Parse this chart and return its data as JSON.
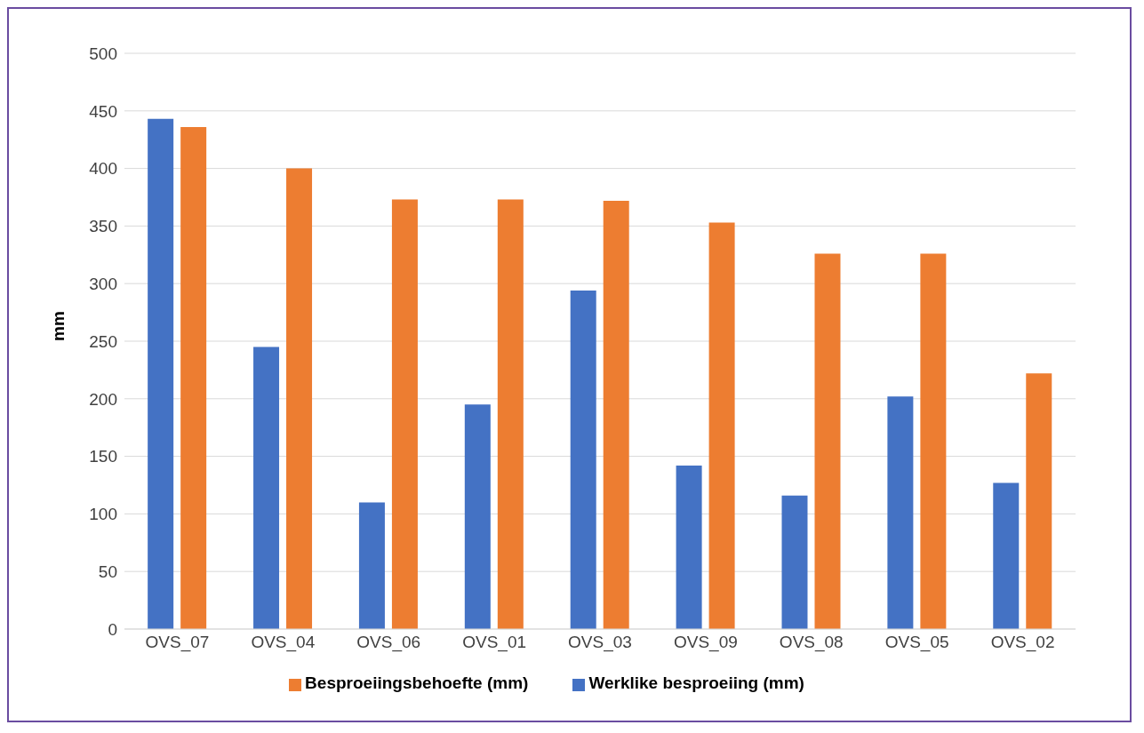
{
  "chart_data": {
    "type": "bar",
    "ylabel": "mm",
    "categories": [
      "OVS_07",
      "OVS_04",
      "OVS_06",
      "OVS_01",
      "OVS_03",
      "OVS_09",
      "OVS_08",
      "OVS_05",
      "OVS_02"
    ],
    "series": [
      {
        "name": "Werklike besproeiing (mm)",
        "color": "#4472c4",
        "values": [
          443,
          245,
          110,
          195,
          294,
          142,
          116,
          202,
          127
        ]
      },
      {
        "name": "Besproeiingsbehoefte (mm)",
        "color": "#ed7d31",
        "values": [
          436,
          400,
          373,
          373,
          372,
          353,
          326,
          326,
          222
        ]
      }
    ],
    "ylim": [
      0,
      500
    ],
    "yticks": [
      0,
      50,
      100,
      150,
      200,
      250,
      300,
      350,
      400,
      450,
      500
    ],
    "grid": "y",
    "legend": "bottom"
  }
}
